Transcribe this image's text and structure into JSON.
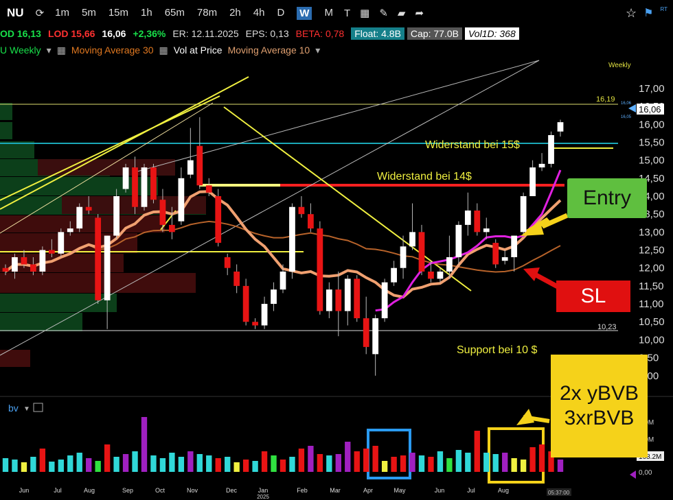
{
  "toolbar": {
    "ticker": "NU",
    "timeframes": [
      "1m",
      "5m",
      "15m",
      "1h",
      "65m",
      "78m",
      "2h",
      "4h",
      "D",
      "W",
      "M"
    ],
    "active_timeframe": "W"
  },
  "quote": {
    "hod": "OD 16,13",
    "lod": "LOD 15,66",
    "last": "16,06",
    "change": "+2,36%",
    "er": "ER: 12.11.2025",
    "eps": "EPS: 0,13",
    "beta": "BETA: 0,78",
    "float": "Float: 4.8B",
    "cap": "Cap: 77.0B",
    "vol1d": "Vol1D: 368"
  },
  "indicators": {
    "period": "U Weekly",
    "ma30": "Moving Average 30",
    "vap": "Vol at Price",
    "ma10": "Moving Average 10"
  },
  "annotations": {
    "weekly": "Weekly",
    "resist15": "Widerstand bei 15$",
    "resist14": "Widerstand bei 14$",
    "support10": "Support bei 10 $",
    "level_1619": "16,19",
    "level_1023": "10,23",
    "entry": "Entry",
    "sl": "SL",
    "bvb_line1": "2x yBVB",
    "bvb_line2": "3xrBVB",
    "volume_pane": "bv",
    "vol_label_1": "0.0M",
    "vol_label_2": "0.0M",
    "vol_label_3": "168.2M",
    "vol_label_4": "0,00",
    "time_label": "05:37:00",
    "mini_price_1": "16,06",
    "mini_price_2": "16,05",
    "rt": "RT"
  },
  "colors": {
    "up": "#ffffff",
    "down": "#e81414",
    "ma10": "#f0a070",
    "ma30": "#b8632a",
    "ma_magenta": "#e020e0",
    "trend_yellow": "#f0f040",
    "entry_green": "#5fbf3f",
    "sl_red": "#e01010",
    "callout_yellow": "#f5d21a"
  },
  "chart_data": {
    "type": "candlestick",
    "y_ticks": [
      "17,00",
      "16,50",
      "16,00",
      "15,50",
      "15,00",
      "14,50",
      "14,00",
      "13,50",
      "13,00",
      "12,50",
      "12,00",
      "11,50",
      "11,00",
      "10,50",
      "10,00",
      "9,50",
      "9,00"
    ],
    "ylim": [
      8.9,
      17.4
    ],
    "last_price": "16,06",
    "x_ticks": [
      "Jun",
      "Jul",
      "Aug",
      "Sep",
      "Oct",
      "Nov",
      "Dec",
      "Jan",
      "Feb",
      "Mar",
      "Apr",
      "May",
      "Jun",
      "Jul",
      "Aug"
    ],
    "year_label": "2025",
    "candles": [
      [
        12.0,
        12.1,
        11.8,
        11.9
      ],
      [
        11.9,
        12.4,
        11.7,
        12.3
      ],
      [
        12.3,
        12.5,
        12.0,
        12.1
      ],
      [
        12.1,
        12.3,
        11.8,
        11.9
      ],
      [
        11.9,
        12.6,
        11.8,
        12.5
      ],
      [
        12.5,
        12.8,
        12.3,
        12.4
      ],
      [
        12.4,
        13.1,
        12.3,
        13.0
      ],
      [
        13.0,
        13.3,
        12.9,
        13.1
      ],
      [
        13.1,
        13.8,
        13.0,
        13.7
      ],
      [
        13.7,
        14.0,
        13.5,
        13.6
      ],
      [
        13.4,
        13.5,
        11.0,
        11.1
      ],
      [
        11.1,
        12.9,
        10.3,
        12.9
      ],
      [
        12.9,
        14.2,
        12.8,
        14.0
      ],
      [
        14.2,
        14.9,
        14.1,
        14.8
      ],
      [
        14.8,
        15.1,
        13.5,
        13.7
      ],
      [
        13.7,
        14.9,
        13.6,
        14.8
      ],
      [
        14.8,
        14.9,
        13.8,
        13.9
      ],
      [
        13.9,
        14.2,
        13.0,
        13.2
      ],
      [
        13.2,
        13.7,
        12.8,
        13.0
      ],
      [
        13.3,
        14.8,
        13.2,
        14.5
      ],
      [
        14.6,
        15.9,
        14.5,
        15.0
      ],
      [
        15.4,
        16.2,
        14.2,
        14.3
      ],
      [
        14.3,
        14.5,
        14.0,
        14.1
      ],
      [
        14.0,
        14.2,
        12.6,
        12.7
      ],
      [
        12.3,
        12.4,
        11.8,
        12.0
      ],
      [
        11.9,
        12.1,
        11.3,
        11.5
      ],
      [
        11.5,
        11.7,
        10.4,
        10.5
      ],
      [
        10.5,
        10.6,
        10.3,
        10.4
      ],
      [
        10.4,
        11.2,
        10.3,
        11.0
      ],
      [
        11.0,
        11.6,
        10.8,
        11.4
      ],
      [
        11.4,
        12.1,
        11.3,
        11.9
      ],
      [
        11.9,
        13.8,
        11.7,
        13.7
      ],
      [
        13.7,
        14.0,
        13.4,
        13.5
      ],
      [
        13.5,
        13.8,
        13.0,
        13.1
      ],
      [
        13.1,
        13.3,
        10.7,
        10.8
      ],
      [
        10.8,
        11.6,
        10.6,
        11.4
      ],
      [
        11.4,
        11.9,
        10.1,
        10.8
      ],
      [
        10.8,
        11.8,
        10.4,
        11.7
      ],
      [
        11.7,
        11.8,
        10.5,
        10.6
      ],
      [
        10.6,
        11.2,
        9.6,
        9.8
      ],
      [
        9.6,
        10.7,
        9.0,
        10.6
      ],
      [
        10.6,
        11.7,
        10.5,
        11.6
      ],
      [
        11.6,
        12.2,
        11.5,
        12.0
      ],
      [
        12.0,
        12.9,
        11.7,
        12.6
      ],
      [
        12.6,
        13.8,
        12.5,
        13.0
      ],
      [
        13.0,
        13.2,
        11.8,
        11.9
      ],
      [
        11.9,
        12.2,
        11.6,
        11.7
      ],
      [
        11.7,
        12.0,
        11.6,
        11.9
      ],
      [
        11.9,
        12.9,
        11.7,
        12.3
      ],
      [
        12.3,
        13.3,
        12.1,
        13.2
      ],
      [
        13.2,
        14.1,
        12.9,
        13.6
      ],
      [
        13.6,
        13.8,
        12.9,
        13.0
      ],
      [
        13.0,
        13.4,
        12.8,
        13.1
      ],
      [
        12.7,
        12.8,
        12.0,
        12.1
      ],
      [
        12.2,
        12.5,
        12.1,
        12.3
      ],
      [
        12.3,
        12.9,
        11.9,
        12.9
      ],
      [
        13.0,
        14.1,
        12.9,
        14.0
      ],
      [
        14.0,
        15.0,
        14.0,
        14.8
      ],
      [
        14.8,
        15.2,
        14.7,
        14.9
      ],
      [
        14.9,
        15.8,
        14.8,
        15.7
      ],
      [
        15.8,
        16.13,
        15.66,
        16.06
      ]
    ],
    "volume": {
      "bars": [
        {
          "c": "teal",
          "h": 20
        },
        {
          "c": "teal",
          "h": 18
        },
        {
          "c": "yellow",
          "h": 14
        },
        {
          "c": "teal",
          "h": 22
        },
        {
          "c": "red",
          "h": 34
        },
        {
          "c": "teal",
          "h": 15
        },
        {
          "c": "teal",
          "h": 18
        },
        {
          "c": "teal",
          "h": 24
        },
        {
          "c": "teal",
          "h": 28
        },
        {
          "c": "purple",
          "h": 20
        },
        {
          "c": "green",
          "h": 16
        },
        {
          "c": "red",
          "h": 40
        },
        {
          "c": "teal",
          "h": 22
        },
        {
          "c": "purple",
          "h": 26
        },
        {
          "c": "teal",
          "h": 30
        },
        {
          "c": "purple",
          "h": 80
        },
        {
          "c": "teal",
          "h": 24
        },
        {
          "c": "teal",
          "h": 20
        },
        {
          "c": "teal",
          "h": 28
        },
        {
          "c": "teal",
          "h": 22
        },
        {
          "c": "purple",
          "h": 30
        },
        {
          "c": "teal",
          "h": 26
        },
        {
          "c": "teal",
          "h": 24
        },
        {
          "c": "red",
          "h": 20
        },
        {
          "c": "teal",
          "h": 22
        },
        {
          "c": "yellow",
          "h": 14
        },
        {
          "c": "red",
          "h": 18
        },
        {
          "c": "teal",
          "h": 16
        },
        {
          "c": "red",
          "h": 30
        },
        {
          "c": "green",
          "h": 24
        },
        {
          "c": "red",
          "h": 18
        },
        {
          "c": "teal",
          "h": 22
        },
        {
          "c": "red",
          "h": 34
        },
        {
          "c": "purple",
          "h": 38
        },
        {
          "c": "red",
          "h": 26
        },
        {
          "c": "teal",
          "h": 24
        },
        {
          "c": "purple",
          "h": 26
        },
        {
          "c": "purple",
          "h": 44
        },
        {
          "c": "red",
          "h": 30
        },
        {
          "c": "red",
          "h": 34
        },
        {
          "c": "red",
          "h": 38
        },
        {
          "c": "yellow",
          "h": 16
        },
        {
          "c": "red",
          "h": 22
        },
        {
          "c": "red",
          "h": 24
        },
        {
          "c": "purple",
          "h": 28
        },
        {
          "c": "teal",
          "h": 24
        },
        {
          "c": "red",
          "h": 22
        },
        {
          "c": "teal",
          "h": 30
        },
        {
          "c": "green",
          "h": 20
        },
        {
          "c": "teal",
          "h": 32
        },
        {
          "c": "teal",
          "h": 28
        },
        {
          "c": "red",
          "h": 60
        },
        {
          "c": "teal",
          "h": 28
        },
        {
          "c": "teal",
          "h": 26
        },
        {
          "c": "purple",
          "h": 28
        },
        {
          "c": "yellow",
          "h": 20
        },
        {
          "c": "yellow",
          "h": 18
        },
        {
          "c": "red",
          "h": 36
        },
        {
          "c": "red",
          "h": 40
        },
        {
          "c": "red",
          "h": 30
        },
        {
          "c": "purple",
          "h": 18
        }
      ]
    }
  }
}
